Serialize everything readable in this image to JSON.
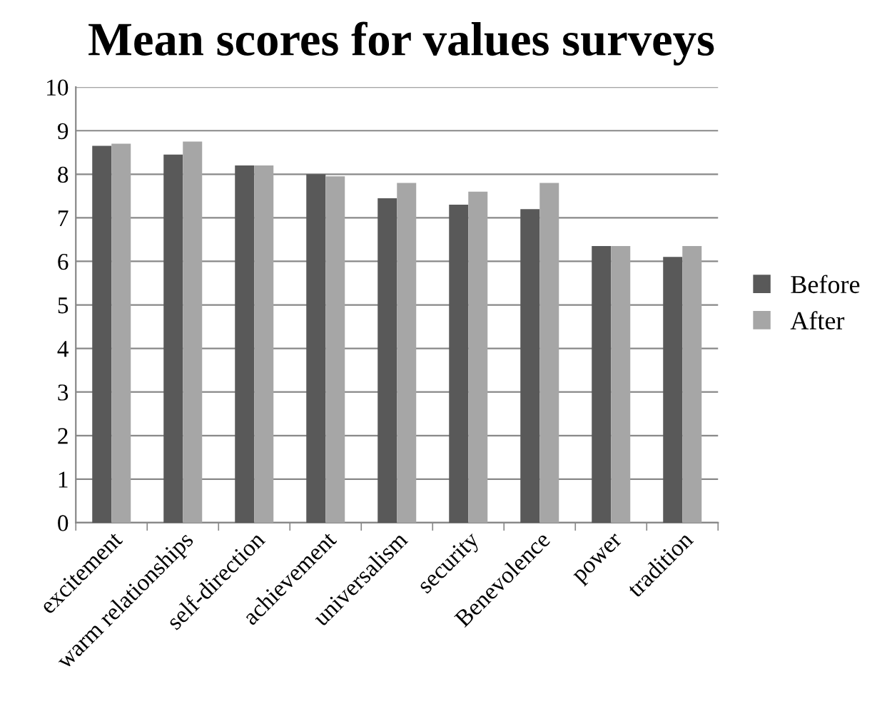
{
  "chart_data": {
    "type": "bar",
    "title": "Mean scores for values surveys",
    "categories": [
      "excitement",
      "warm relationships",
      "self-direction",
      "achievement",
      "universalism",
      "security",
      "Benevolence",
      "power",
      "tradition"
    ],
    "series": [
      {
        "name": "Before",
        "color": "#595959",
        "values": [
          8.65,
          8.45,
          8.2,
          8.0,
          7.45,
          7.3,
          7.2,
          6.35,
          6.1
        ]
      },
      {
        "name": "After",
        "color": "#a6a6a6",
        "values": [
          8.7,
          8.75,
          8.2,
          7.95,
          7.8,
          7.6,
          7.8,
          6.35,
          6.35
        ]
      }
    ],
    "ylim": [
      0,
      10
    ],
    "yticks": [
      0,
      1,
      2,
      3,
      4,
      5,
      6,
      7,
      8,
      9,
      10
    ],
    "grid": "y",
    "legend": "right"
  }
}
